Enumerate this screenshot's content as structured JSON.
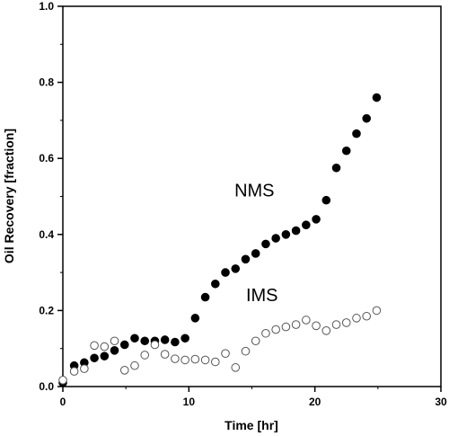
{
  "chart_data": {
    "type": "scatter",
    "title": "",
    "xlabel": "Time [hr]",
    "ylabel": "Oil Recovery [fraction]",
    "xlim": [
      0,
      30
    ],
    "ylim": [
      0,
      1.0
    ],
    "xticks": [
      "0",
      "10",
      "20",
      "30"
    ],
    "yticks": [
      "0.0",
      "0.2",
      "0.4",
      "0.6",
      "0.8",
      "1.0"
    ],
    "grid": false,
    "legend": "none",
    "series": [
      {
        "name": "NMS",
        "marker": "filled-circle",
        "color": "#000000",
        "points": [
          [
            0.0,
            0.01
          ],
          [
            0.9,
            0.055
          ],
          [
            1.7,
            0.063
          ],
          [
            2.5,
            0.075
          ],
          [
            3.3,
            0.08
          ],
          [
            4.1,
            0.095
          ],
          [
            4.9,
            0.11
          ],
          [
            5.7,
            0.127
          ],
          [
            6.5,
            0.12
          ],
          [
            7.3,
            0.12
          ],
          [
            8.1,
            0.123
          ],
          [
            8.9,
            0.117
          ],
          [
            9.7,
            0.127
          ],
          [
            10.5,
            0.18
          ],
          [
            11.3,
            0.235
          ],
          [
            12.1,
            0.27
          ],
          [
            12.9,
            0.3
          ],
          [
            13.7,
            0.31
          ],
          [
            14.5,
            0.335
          ],
          [
            15.3,
            0.35
          ],
          [
            16.1,
            0.375
          ],
          [
            16.9,
            0.39
          ],
          [
            17.7,
            0.4
          ],
          [
            18.5,
            0.41
          ],
          [
            19.3,
            0.425
          ],
          [
            20.1,
            0.44
          ],
          [
            20.9,
            0.49
          ],
          [
            21.7,
            0.575
          ],
          [
            22.5,
            0.62
          ],
          [
            23.3,
            0.665
          ],
          [
            24.1,
            0.705
          ],
          [
            24.9,
            0.76
          ]
        ]
      },
      {
        "name": "IMS",
        "marker": "open-circle",
        "color": "#000000",
        "points": [
          [
            0.0,
            0.017
          ],
          [
            0.9,
            0.04
          ],
          [
            1.7,
            0.047
          ],
          [
            2.5,
            0.108
          ],
          [
            3.3,
            0.105
          ],
          [
            4.1,
            0.12
          ],
          [
            4.9,
            0.043
          ],
          [
            5.7,
            0.055
          ],
          [
            6.5,
            0.083
          ],
          [
            7.3,
            0.11
          ],
          [
            8.1,
            0.085
          ],
          [
            8.9,
            0.073
          ],
          [
            9.7,
            0.07
          ],
          [
            10.5,
            0.072
          ],
          [
            11.3,
            0.07
          ],
          [
            12.1,
            0.065
          ],
          [
            12.9,
            0.087
          ],
          [
            13.7,
            0.05
          ],
          [
            14.5,
            0.093
          ],
          [
            15.3,
            0.12
          ],
          [
            16.1,
            0.14
          ],
          [
            16.9,
            0.15
          ],
          [
            17.7,
            0.157
          ],
          [
            18.5,
            0.163
          ],
          [
            19.3,
            0.175
          ],
          [
            20.1,
            0.16
          ],
          [
            20.9,
            0.147
          ],
          [
            21.7,
            0.163
          ],
          [
            22.5,
            0.168
          ],
          [
            23.3,
            0.18
          ],
          [
            24.1,
            0.185
          ],
          [
            24.9,
            0.2
          ]
        ]
      }
    ],
    "annotations": [
      {
        "text": "NMS",
        "x": 15.2,
        "y": 0.5
      },
      {
        "text": "IMS",
        "x": 15.8,
        "y": 0.225
      }
    ]
  }
}
